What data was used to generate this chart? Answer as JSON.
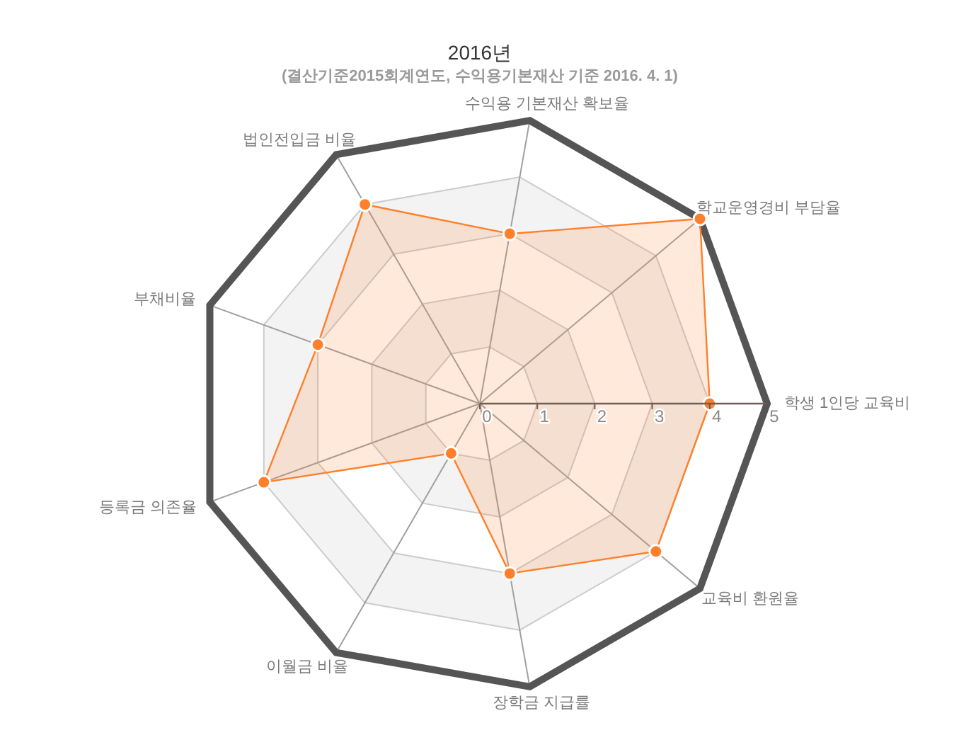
{
  "chart_data": {
    "type": "radar",
    "title": "2016년",
    "subtitle": "(결산기준2015회계연도, 수익용기본재산 기준 2016. 4. 1)",
    "categories": [
      "수익용 기본재산 확보율",
      "학교운영경비 부담율",
      "학생 1인당 교육비",
      "교육비 환원율",
      "장학금 지급률",
      "이월금 비율",
      "등록금 의존율",
      "부채비율",
      "법인전입금 비율"
    ],
    "series": [
      {
        "color": "#ff7f2a",
        "values": [
          3.0,
          5.0,
          4.0,
          4.0,
          3.0,
          1.0,
          4.0,
          3.0,
          4.0
        ]
      }
    ],
    "ylim": [
      0,
      5
    ],
    "yticks": [
      0,
      1,
      2,
      3,
      4,
      5
    ],
    "grid": true,
    "marker": "circle"
  }
}
